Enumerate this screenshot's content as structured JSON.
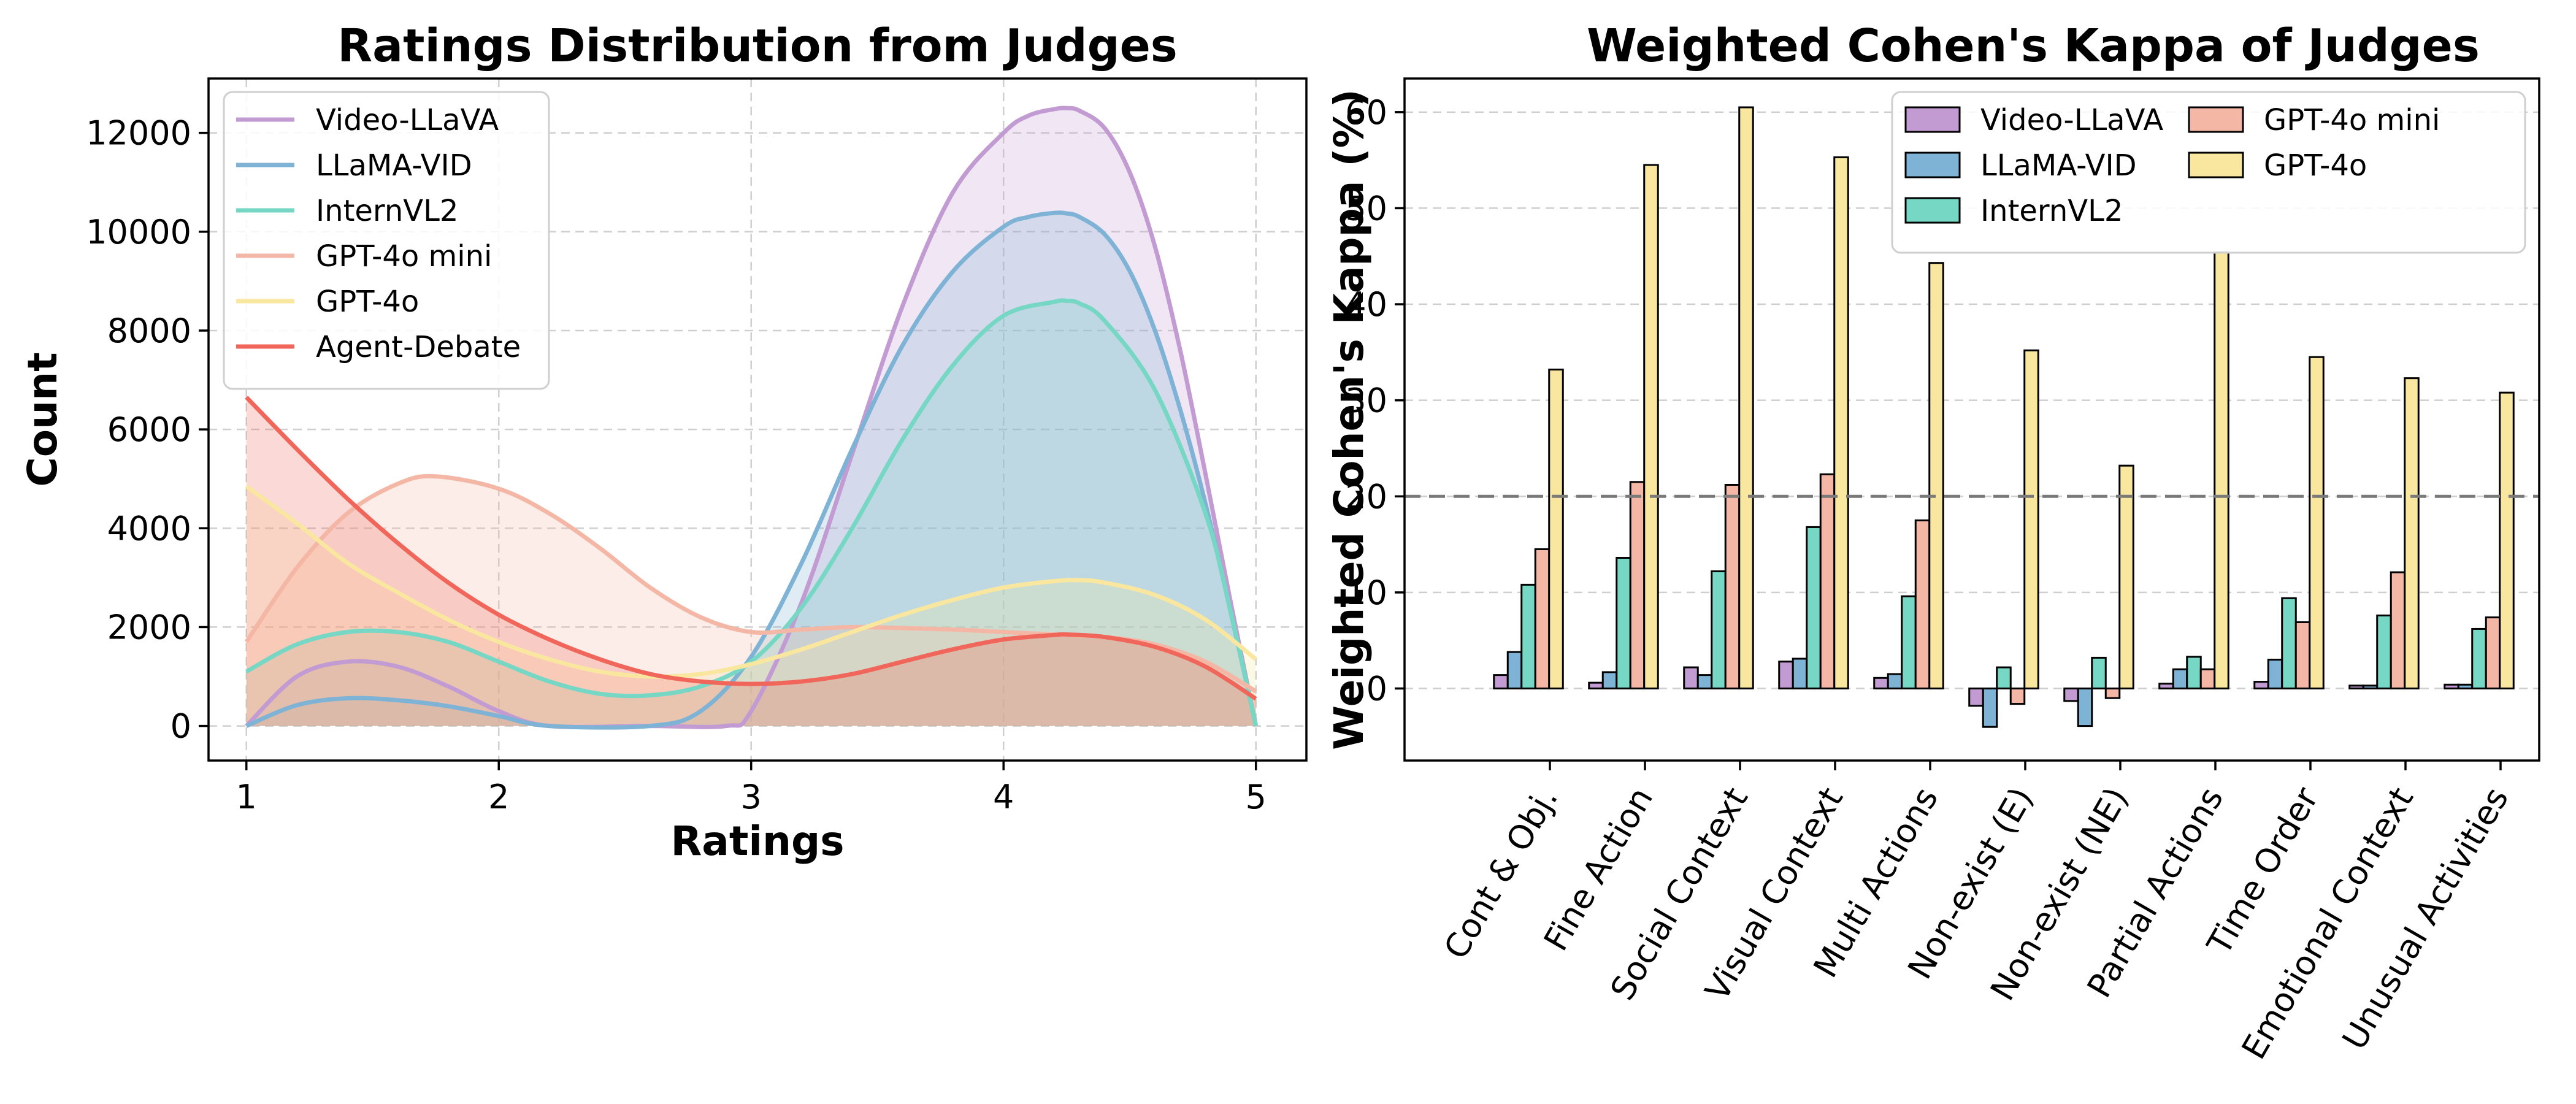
{
  "chart_data": [
    {
      "type": "area",
      "title": "Ratings Distribution from Judges",
      "xlabel": "Ratings",
      "ylabel": "Count",
      "xlim": [
        0.85,
        5.2
      ],
      "ylim": [
        -700,
        13100
      ],
      "xticks": [
        1,
        2,
        3,
        4,
        5
      ],
      "yticks": [
        0,
        2000,
        4000,
        6000,
        8000,
        10000,
        12000
      ],
      "grid": true,
      "legend_position": "top-left",
      "series": [
        {
          "name": "Video-LLaVA",
          "color": "#c39bd3",
          "fill_opacity": 0.25,
          "x": [
            1,
            1.2,
            1.4,
            1.6,
            1.8,
            2.0,
            2.2,
            2.6,
            2.9,
            3.0,
            3.2,
            3.4,
            3.6,
            3.8,
            4.0,
            4.1,
            4.2,
            4.25,
            4.3,
            4.4,
            4.5,
            4.6,
            4.7,
            4.8,
            4.9,
            5.0
          ],
          "y": [
            0,
            1000,
            1300,
            1200,
            800,
            300,
            0,
            0,
            0,
            300,
            2500,
            5500,
            8500,
            10800,
            12000,
            12350,
            12480,
            12500,
            12450,
            12100,
            11200,
            9700,
            7600,
            5100,
            2500,
            0
          ]
        },
        {
          "name": "LLaMA-VID",
          "color": "#7fb3d5",
          "fill_opacity": 0.25,
          "x": [
            1,
            1.2,
            1.4,
            1.6,
            1.8,
            2.0,
            2.2,
            2.6,
            2.8,
            3.0,
            3.2,
            3.4,
            3.6,
            3.8,
            4.0,
            4.1,
            4.2,
            4.25,
            4.3,
            4.4,
            4.5,
            4.6,
            4.7,
            4.8,
            4.9,
            5.0
          ],
          "y": [
            0,
            420,
            560,
            520,
            400,
            200,
            0,
            0,
            300,
            1400,
            3300,
            5600,
            7700,
            9200,
            10100,
            10300,
            10380,
            10370,
            10300,
            9950,
            9200,
            8000,
            6400,
            4500,
            2300,
            0
          ]
        },
        {
          "name": "InternVL2",
          "color": "#76d7c4",
          "fill_opacity": 0.25,
          "x": [
            1,
            1.2,
            1.4,
            1.6,
            1.8,
            2.0,
            2.2,
            2.4,
            2.6,
            2.8,
            3.0,
            3.2,
            3.4,
            3.6,
            3.8,
            4.0,
            4.2,
            4.25,
            4.3,
            4.4,
            4.6,
            4.8,
            4.9,
            5.0
          ],
          "y": [
            1100,
            1650,
            1900,
            1900,
            1700,
            1300,
            900,
            650,
            620,
            800,
            1300,
            2400,
            4000,
            5800,
            7300,
            8300,
            8580,
            8600,
            8550,
            8200,
            6800,
            4300,
            2300,
            0
          ]
        },
        {
          "name": "GPT-4o mini",
          "color": "#f5b7a5",
          "fill_opacity": 0.25,
          "x": [
            1,
            1.2,
            1.4,
            1.6,
            1.75,
            2.0,
            2.2,
            2.4,
            2.6,
            2.8,
            3.0,
            3.2,
            3.4,
            3.6,
            3.8,
            4.0,
            4.2,
            4.4,
            4.6,
            4.8,
            5.0
          ],
          "y": [
            1700,
            3200,
            4300,
            4900,
            5050,
            4800,
            4300,
            3600,
            2800,
            2200,
            1900,
            1950,
            2000,
            1980,
            1950,
            1900,
            1850,
            1800,
            1650,
            1300,
            700
          ]
        },
        {
          "name": "GPT-4o",
          "color": "#f9e79f",
          "fill_opacity": 0.25,
          "x": [
            1,
            1.2,
            1.4,
            1.6,
            1.8,
            2.0,
            2.2,
            2.4,
            2.6,
            2.8,
            3.0,
            3.2,
            3.4,
            3.6,
            3.8,
            4.0,
            4.2,
            4.3,
            4.4,
            4.6,
            4.8,
            5.0
          ],
          "y": [
            4850,
            4100,
            3300,
            2700,
            2150,
            1700,
            1350,
            1100,
            1000,
            1050,
            1250,
            1550,
            1900,
            2250,
            2550,
            2800,
            2930,
            2950,
            2900,
            2650,
            2150,
            1350
          ]
        },
        {
          "name": "Agent-Debate",
          "color": "#f1665a",
          "fill_opacity": 0.25,
          "x": [
            1,
            1.2,
            1.4,
            1.6,
            1.8,
            2.0,
            2.2,
            2.4,
            2.6,
            2.8,
            3.0,
            3.2,
            3.4,
            3.6,
            3.8,
            4.0,
            4.2,
            4.25,
            4.4,
            4.6,
            4.8,
            5.0
          ],
          "y": [
            6650,
            5600,
            4600,
            3700,
            2900,
            2250,
            1750,
            1350,
            1050,
            900,
            850,
            900,
            1050,
            1300,
            1550,
            1750,
            1840,
            1850,
            1800,
            1600,
            1200,
            550
          ]
        }
      ]
    },
    {
      "type": "bar",
      "title": "Weighted Cohen's Kappa of Judges",
      "xlabel": "",
      "ylabel": "Weighted Cohen's Kappa (%)",
      "ylim": [
        -7.5,
        63.5
      ],
      "yticks": [
        0,
        10,
        20,
        30,
        40,
        50,
        60
      ],
      "reference_line": 20,
      "grid": true,
      "legend_position": "top-right",
      "categories": [
        "Cont & Obj.",
        "Fine Action",
        "Social Context",
        "Visual Context",
        "Multi Actions",
        "Non-exist (E)",
        "Non-exist (NE)",
        "Partial Actions",
        "Time Order",
        "Emotional Context",
        "Unusual Activities"
      ],
      "series": [
        {
          "name": "Video-LLaVA",
          "color": "#c39bd3",
          "values": [
            1.4,
            0.6,
            2.2,
            2.8,
            1.1,
            -1.8,
            -1.3,
            0.5,
            0.7,
            0.3,
            0.4
          ]
        },
        {
          "name": "LLaMA-VID",
          "color": "#7fb3d5",
          "values": [
            3.8,
            1.7,
            1.4,
            3.1,
            1.5,
            -4.0,
            -3.9,
            2.0,
            3.0,
            0.3,
            0.4
          ]
        },
        {
          "name": "InternVL2",
          "color": "#76d7c4",
          "values": [
            10.8,
            13.6,
            12.2,
            16.8,
            9.6,
            2.2,
            3.2,
            3.3,
            9.4,
            7.6,
            6.2
          ]
        },
        {
          "name": "GPT-4o mini",
          "color": "#f5b7a5",
          "values": [
            14.5,
            21.5,
            21.2,
            22.3,
            17.5,
            -1.6,
            -1.0,
            2.0,
            6.9,
            12.1,
            7.4
          ]
        },
        {
          "name": "GPT-4o",
          "color": "#f9e79f",
          "values": [
            33.2,
            54.5,
            60.5,
            55.3,
            44.3,
            35.2,
            23.2,
            45.4,
            34.5,
            32.3,
            30.8
          ]
        }
      ]
    }
  ]
}
